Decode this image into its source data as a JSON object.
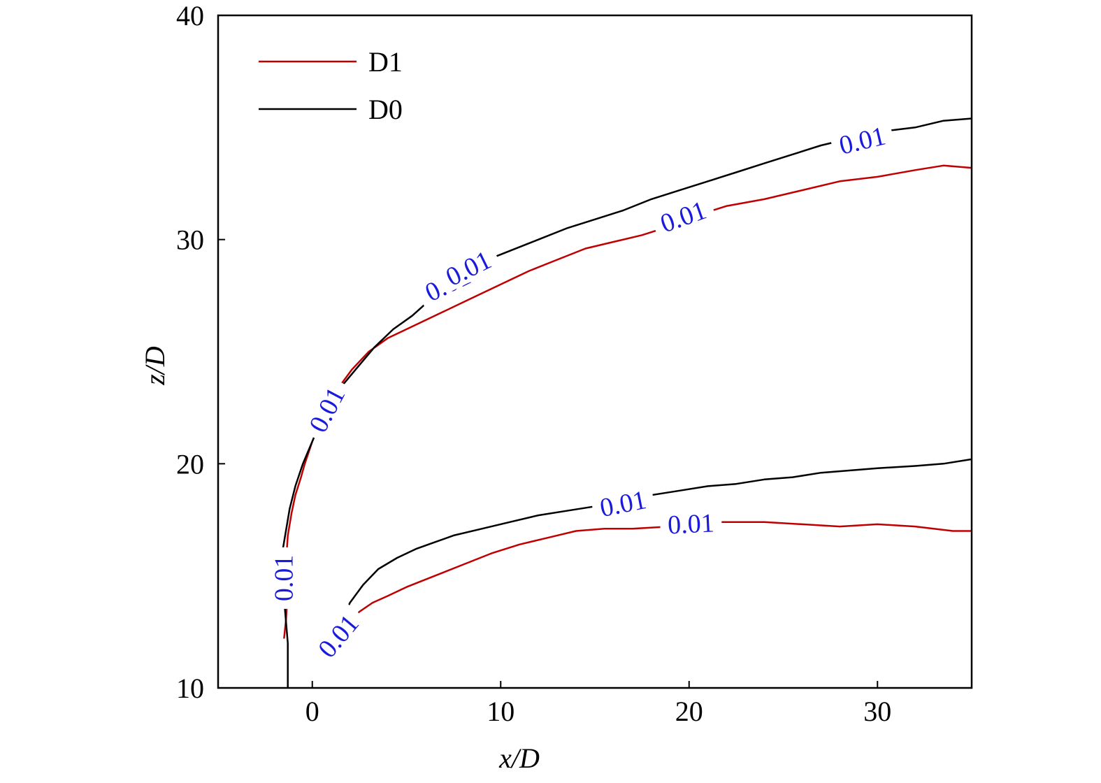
{
  "chart_data": {
    "type": "line",
    "xlabel": "x/D",
    "ylabel": "z/D",
    "xlim": [
      -5,
      35
    ],
    "ylim": [
      10,
      40
    ],
    "xticks": [
      0,
      10,
      20,
      30
    ],
    "yticks": [
      10,
      20,
      30,
      40
    ],
    "grid": false,
    "legend_position": "top-left",
    "colors": {
      "D1": "#c00000",
      "D0": "#000000",
      "contour_label": "#1a1adc"
    },
    "series": [
      {
        "name": "D1",
        "contours": [
          {
            "label": "0.01",
            "points": [
              [
                -1.5,
                12.2
              ],
              [
                -1.4,
                13.0
              ],
              [
                -1.3,
                14.3
              ],
              [
                -1.4,
                15.5
              ],
              [
                -1.3,
                16.8
              ],
              [
                -1.1,
                17.8
              ],
              [
                -0.9,
                18.6
              ],
              [
                -0.6,
                19.4
              ],
              [
                -0.4,
                20.0
              ],
              [
                0.0,
                21.0
              ],
              [
                0.4,
                21.8
              ],
              [
                0.8,
                22.5
              ],
              [
                1.4,
                23.4
              ],
              [
                2.1,
                24.2
              ],
              [
                3.0,
                25.0
              ],
              [
                4.0,
                25.6
              ],
              [
                5.5,
                26.2
              ],
              [
                7.0,
                26.8
              ],
              [
                8.5,
                27.4
              ],
              [
                10.0,
                28.0
              ],
              [
                11.5,
                28.6
              ],
              [
                13.0,
                29.1
              ],
              [
                14.5,
                29.6
              ],
              [
                16.0,
                29.9
              ],
              [
                17.5,
                30.2
              ],
              [
                19.0,
                30.6
              ],
              [
                20.5,
                31.1
              ],
              [
                22.0,
                31.5
              ],
              [
                24.0,
                31.8
              ],
              [
                26.0,
                32.2
              ],
              [
                28.0,
                32.6
              ],
              [
                30.0,
                32.8
              ],
              [
                32.0,
                33.1
              ],
              [
                33.5,
                33.3
              ],
              [
                35.0,
                33.2
              ]
            ],
            "label_at": [
              [
                -1.5,
                14.9
              ],
              [
                0.8,
                22.4
              ],
              [
                7.2,
                28.0
              ],
              [
                19.7,
                31.0
              ]
            ]
          },
          {
            "label": "0.01",
            "points": [
              [
                2.0,
                12.9
              ],
              [
                2.5,
                13.4
              ],
              [
                3.2,
                13.8
              ],
              [
                4.0,
                14.1
              ],
              [
                5.0,
                14.5
              ],
              [
                6.5,
                15.0
              ],
              [
                8.0,
                15.5
              ],
              [
                9.5,
                16.0
              ],
              [
                11.0,
                16.4
              ],
              [
                12.5,
                16.7
              ],
              [
                14.0,
                17.0
              ],
              [
                15.5,
                17.1
              ],
              [
                17.0,
                17.1
              ],
              [
                19.0,
                17.2
              ],
              [
                21.0,
                17.4
              ],
              [
                24.0,
                17.4
              ],
              [
                26.0,
                17.3
              ],
              [
                28.0,
                17.2
              ],
              [
                30.0,
                17.3
              ],
              [
                32.0,
                17.2
              ],
              [
                34.0,
                17.0
              ],
              [
                35.0,
                17.0
              ]
            ],
            "label_at": [
              [
                1.4,
                12.3
              ],
              [
                20.1,
                17.3
              ]
            ]
          }
        ]
      },
      {
        "name": "D0",
        "contours": [
          {
            "label": "0.01",
            "points": [
              [
                -1.3,
                10.0
              ],
              [
                -1.3,
                12.0
              ],
              [
                -1.4,
                13.0
              ],
              [
                -1.5,
                14.0
              ],
              [
                -1.6,
                15.0
              ],
              [
                -1.6,
                16.0
              ],
              [
                -1.4,
                17.0
              ],
              [
                -1.2,
                18.0
              ],
              [
                -0.9,
                19.0
              ],
              [
                -0.5,
                20.0
              ],
              [
                0.0,
                21.0
              ],
              [
                0.4,
                21.8
              ],
              [
                0.9,
                22.6
              ],
              [
                1.6,
                23.5
              ],
              [
                2.4,
                24.3
              ],
              [
                3.3,
                25.2
              ],
              [
                4.3,
                26.0
              ],
              [
                5.3,
                26.6
              ],
              [
                6.5,
                27.5
              ],
              [
                7.6,
                28.3
              ],
              [
                9.0,
                29.0
              ],
              [
                10.5,
                29.5
              ],
              [
                12.0,
                30.0
              ],
              [
                13.5,
                30.5
              ],
              [
                15.0,
                30.9
              ],
              [
                16.5,
                31.3
              ],
              [
                18.0,
                31.8
              ],
              [
                19.5,
                32.2
              ],
              [
                21.0,
                32.6
              ],
              [
                22.5,
                33.0
              ],
              [
                24.0,
                33.4
              ],
              [
                25.5,
                33.8
              ],
              [
                27.0,
                34.2
              ],
              [
                28.5,
                34.5
              ],
              [
                30.0,
                34.8
              ],
              [
                32.0,
                35.0
              ],
              [
                33.5,
                35.3
              ],
              [
                35.0,
                35.4
              ]
            ],
            "label_at": [
              [
                8.3,
                28.7
              ],
              [
                29.2,
                34.4
              ]
            ]
          },
          {
            "label": "0.01",
            "points": [
              [
                1.5,
                12.9
              ],
              [
                2.0,
                13.8
              ],
              [
                2.7,
                14.6
              ],
              [
                3.5,
                15.3
              ],
              [
                4.5,
                15.8
              ],
              [
                5.5,
                16.2
              ],
              [
                6.5,
                16.5
              ],
              [
                7.5,
                16.8
              ],
              [
                9.0,
                17.1
              ],
              [
                10.5,
                17.4
              ],
              [
                12.0,
                17.7
              ],
              [
                13.5,
                17.9
              ],
              [
                15.0,
                18.1
              ],
              [
                16.5,
                18.4
              ],
              [
                18.0,
                18.6
              ],
              [
                19.5,
                18.8
              ],
              [
                21.0,
                19.0
              ],
              [
                22.5,
                19.1
              ],
              [
                24.0,
                19.3
              ],
              [
                25.5,
                19.4
              ],
              [
                27.0,
                19.6
              ],
              [
                28.5,
                19.7
              ],
              [
                30.0,
                19.8
              ],
              [
                32.0,
                19.9
              ],
              [
                33.5,
                20.0
              ],
              [
                35.0,
                20.2
              ]
            ],
            "label_at": [
              [
                16.5,
                18.2
              ]
            ]
          }
        ]
      }
    ]
  }
}
